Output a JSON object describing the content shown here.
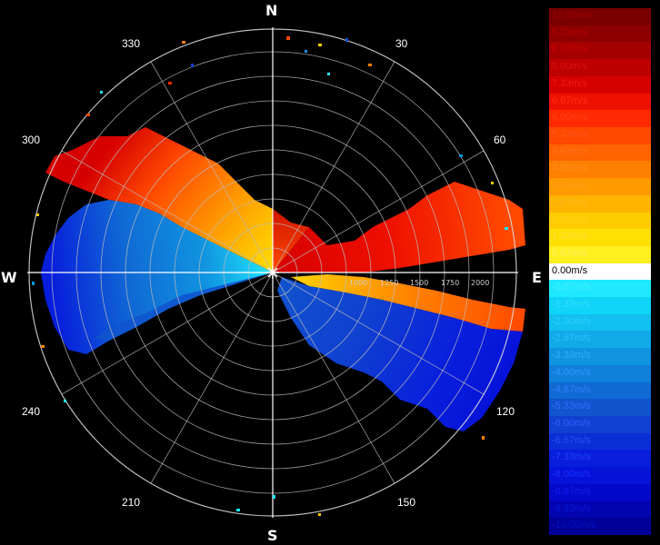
{
  "compass": {
    "north": "N",
    "south": "S",
    "east": "E",
    "west": "W"
  },
  "bearings": [
    "30",
    "60",
    "120",
    "150",
    "210",
    "240",
    "300",
    "330"
  ],
  "range_ticks": [
    "1000",
    "1250",
    "1500",
    "1750",
    "2000"
  ],
  "colorbar": {
    "entries": [
      {
        "label": "10.00m/s",
        "color": "#7a0000",
        "text": "#a00000"
      },
      {
        "label": "9.33m/s",
        "color": "#8e0000",
        "text": "#b80000"
      },
      {
        "label": "8.67m/s",
        "color": "#a50000",
        "text": "#cc0000"
      },
      {
        "label": "8.00m/s",
        "color": "#bd0000",
        "text": "#dd1010"
      },
      {
        "label": "7.33m/s",
        "color": "#d60000",
        "text": "#ee2010"
      },
      {
        "label": "6.67m/s",
        "color": "#ee1000",
        "text": "#ff3010"
      },
      {
        "label": "6.00m/s",
        "color": "#ff2a00",
        "text": "#ff4010"
      },
      {
        "label": "5.33m/s",
        "color": "#ff4800",
        "text": "#ff5820"
      },
      {
        "label": "4.67m/s",
        "color": "#ff6400",
        "text": "#ff7020"
      },
      {
        "label": "4.00m/s",
        "color": "#ff8000",
        "text": "#ff8c20"
      },
      {
        "label": "3.33m/s",
        "color": "#ff9a00",
        "text": "#ffa020"
      },
      {
        "label": "2.67m/s",
        "color": "#ffb400",
        "text": "#ffb820"
      },
      {
        "label": "2.00m/s",
        "color": "#ffcc00",
        "text": "#ffd020"
      },
      {
        "label": "1.33m/s",
        "color": "#ffe000",
        "text": "#ffe040"
      },
      {
        "label": "0.67m/s",
        "color": "#ffee20",
        "text": "#fff060"
      },
      {
        "label": "0.00m/s",
        "color": "#ffffff",
        "text": "#ffffff"
      },
      {
        "label": "-0.67m/s",
        "color": "#20e8ff",
        "text": "#40f0ff"
      },
      {
        "label": "-1.33m/s",
        "color": "#10d4f8",
        "text": "#30e0ff"
      },
      {
        "label": "-2.00m/s",
        "color": "#10c0f0",
        "text": "#30d0ff"
      },
      {
        "label": "-2.67m/s",
        "color": "#10aae8",
        "text": "#30c0ff"
      },
      {
        "label": "-3.33m/s",
        "color": "#1094e0",
        "text": "#30b0ff"
      },
      {
        "label": "-4.00m/s",
        "color": "#1080da",
        "text": "#3098ff"
      },
      {
        "label": "-4.67m/s",
        "color": "#106ad4",
        "text": "#3080ff"
      },
      {
        "label": "-5.33m/s",
        "color": "#1054ce",
        "text": "#3070ff"
      },
      {
        "label": "-6.00m/s",
        "color": "#1040d0",
        "text": "#3060ff"
      },
      {
        "label": "-6.67m/s",
        "color": "#0c2ed6",
        "text": "#2850ff"
      },
      {
        "label": "-7.33m/s",
        "color": "#081edc",
        "text": "#2040ff"
      },
      {
        "label": "-8.00m/s",
        "color": "#0612d8",
        "text": "#1830ff"
      },
      {
        "label": "-8.67m/s",
        "color": "#0408c8",
        "text": "#1020ee"
      },
      {
        "label": "-9.33m/s",
        "color": "#0204b0",
        "text": "#0818d8"
      },
      {
        "label": "-10.00m/s",
        "color": "#000098",
        "text": "#0010c0"
      }
    ]
  }
}
